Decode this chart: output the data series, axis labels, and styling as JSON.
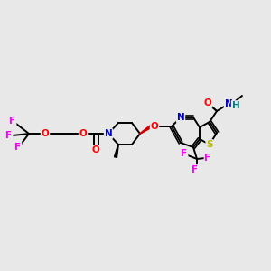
{
  "bg_color": "#e8e8e8",
  "bond_color": "#000000",
  "bond_width": 1.4,
  "atom_colors": {
    "O": "#ff0000",
    "N": "#0000cd",
    "F": "#ff00ff",
    "S": "#b8b800",
    "H": "#008080",
    "C": "#000000"
  },
  "font_size": 7.5
}
